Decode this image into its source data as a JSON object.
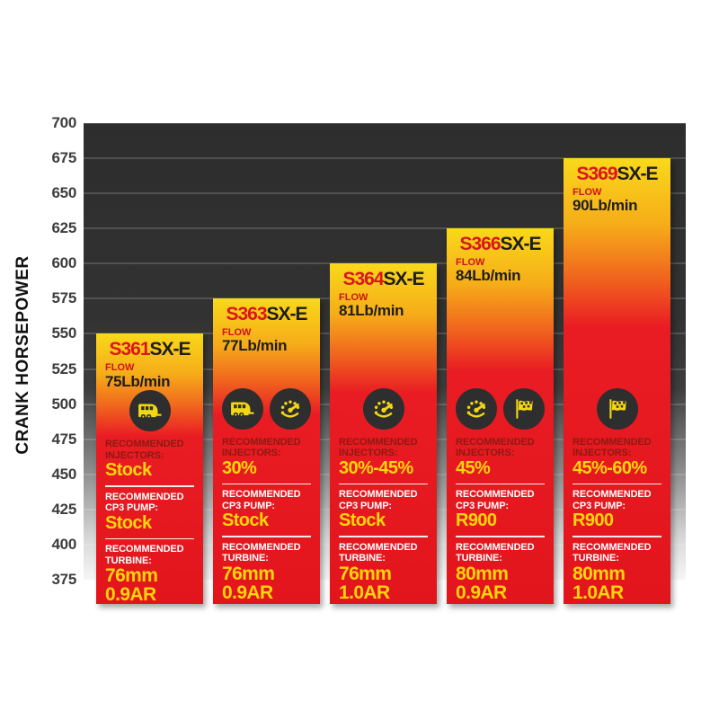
{
  "chart_data": {
    "type": "bar",
    "title": "",
    "ylabel": "CRANK HORSEPOWER",
    "xlabel": "",
    "ylim": [
      375,
      700
    ],
    "yticks": [
      700,
      675,
      650,
      625,
      600,
      575,
      550,
      525,
      500,
      475,
      450,
      425,
      400,
      375
    ],
    "grid": true,
    "legend": "none",
    "categories": [
      "S361SX-E",
      "S363SX-E",
      "S364SX-E",
      "S366SX-E",
      "S369SX-E"
    ],
    "values": [
      550,
      575,
      600,
      625,
      675
    ],
    "bars": [
      {
        "model": "S361",
        "suffix": "SX-E",
        "crank_hp": 550,
        "flow_label": "FLOW",
        "flow_value": "75Lb/min",
        "icons": [
          "towing-icon"
        ],
        "injectors_label": "RECOMMENDED INJECTORS:",
        "injectors_value": "Stock",
        "cp3_label": "RECOMMENDED CP3 PUMP:",
        "cp3_value": "Stock",
        "turbine_label": "RECOMMENDED TURBINE:",
        "turbine_size": "76mm",
        "turbine_ar": "0.9AR"
      },
      {
        "model": "S363",
        "suffix": "SX-E",
        "crank_hp": 575,
        "flow_label": "FLOW",
        "flow_value": "77Lb/min",
        "icons": [
          "towing-icon",
          "gauge-icon"
        ],
        "injectors_label": "RECOMMENDED INJECTORS:",
        "injectors_value": "30%",
        "cp3_label": "RECOMMENDED CP3 PUMP:",
        "cp3_value": "Stock",
        "turbine_label": "RECOMMENDED TURBINE:",
        "turbine_size": "76mm",
        "turbine_ar": "0.9AR"
      },
      {
        "model": "S364",
        "suffix": "SX-E",
        "crank_hp": 600,
        "flow_label": "FLOW",
        "flow_value": "81Lb/min",
        "icons": [
          "gauge-icon"
        ],
        "injectors_label": "RECOMMENDED INJECTORS:",
        "injectors_value": "30%-45%",
        "cp3_label": "RECOMMENDED CP3 PUMP:",
        "cp3_value": "Stock",
        "turbine_label": "RECOMMENDED TURBINE:",
        "turbine_size": "76mm",
        "turbine_ar": "1.0AR"
      },
      {
        "model": "S366",
        "suffix": "SX-E",
        "crank_hp": 625,
        "flow_label": "FLOW",
        "flow_value": "84Lb/min",
        "icons": [
          "gauge-icon",
          "flag-icon"
        ],
        "injectors_label": "RECOMMENDED INJECTORS:",
        "injectors_value": "45%",
        "cp3_label": "RECOMMENDED CP3 PUMP:",
        "cp3_value": "R900",
        "turbine_label": "RECOMMENDED TURBINE:",
        "turbine_size": "80mm",
        "turbine_ar": "0.9AR"
      },
      {
        "model": "S369",
        "suffix": "SX-E",
        "crank_hp": 675,
        "flow_label": "FLOW",
        "flow_value": "90Lb/min",
        "icons": [
          "flag-icon"
        ],
        "injectors_label": "RECOMMENDED INJECTORS:",
        "injectors_value": "45%-60%",
        "cp3_label": "RECOMMENDED CP3 PUMP:",
        "cp3_value": "R900",
        "turbine_label": "RECOMMENDED TURBINE:",
        "turbine_size": "80mm",
        "turbine_ar": "1.0AR"
      }
    ]
  },
  "colors": {
    "bar_yellow_top": "#f9d91a",
    "bar_red": "#e91c23",
    "model_red": "#db161d",
    "value_yellow": "#ffd60a",
    "injectors_label_red": "#8c1a12",
    "white_label": "#ffffff",
    "plot_dark": "#323232",
    "tick_label": "#3d3d3d",
    "icon_circle": "#2e2e2e",
    "icon_glyph": "#f2d713"
  }
}
